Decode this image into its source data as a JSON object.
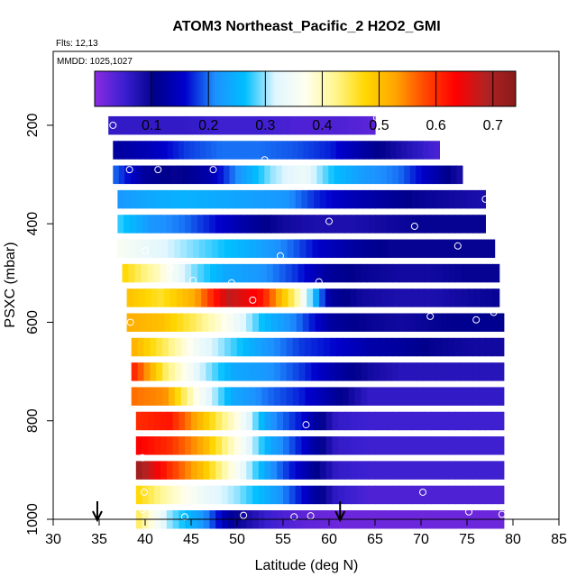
{
  "chart_data": {
    "type": "heatmap",
    "title": "ATOM3 Northeast_Pacific_2 H2O2_GMI",
    "meta": {
      "flights": "Flts: 12,13",
      "mmdd": "MMDD: 1025,1027"
    },
    "xlabel": "Latitude (deg N)",
    "ylabel": "PSXC (mbar)",
    "xlim": [
      30,
      85
    ],
    "ylim": [
      1000,
      50
    ],
    "x_ticks": [
      "30",
      "35",
      "40",
      "45",
      "50",
      "55",
      "60",
      "65",
      "70",
      "75",
      "80",
      "85"
    ],
    "y_ticks": [
      "200",
      "400",
      "600",
      "800",
      "1000"
    ],
    "colorbar": {
      "ticks": [
        "0.1",
        "0.2",
        "0.3",
        "0.4",
        "0.5",
        "0.6",
        "0.7"
      ],
      "range": [
        0.0,
        0.74
      ],
      "colors": [
        "#8b2be2",
        "#3a1fd0",
        "#00008b",
        "#0000cd",
        "#1e90ff",
        "#00bfff",
        "#e0f6ff",
        "#fffff0",
        "#fff68f",
        "#ffd700",
        "#ffa500",
        "#ff4500",
        "#ff0000",
        "#b22222",
        "#8b1a1a"
      ]
    },
    "rows": [
      {
        "p": 200,
        "lat0": 36,
        "lat1": 65,
        "vals": [
          0.06,
          0.06,
          0.06,
          0.05,
          0.05,
          0.04,
          0.04,
          0.03
        ]
      },
      {
        "p": 250,
        "lat0": 36.5,
        "lat1": 72,
        "vals": [
          0.12,
          0.14,
          0.18,
          0.2,
          0.2,
          0.19,
          0.17,
          0.12,
          0.08,
          0.04
        ]
      },
      {
        "p": 300,
        "lat0": 36.5,
        "lat1": 74.5,
        "vals": [
          0.2,
          0.12,
          0.1,
          0.13,
          0.22,
          0.3,
          0.34,
          0.26,
          0.22,
          0.2,
          0.14,
          0.08
        ]
      },
      {
        "p": 350,
        "lat0": 37,
        "lat1": 77,
        "vals": [
          0.22,
          0.24,
          0.25,
          0.24,
          0.23,
          0.22,
          0.17,
          0.14,
          0.12,
          0.1,
          0.09,
          0.08
        ]
      },
      {
        "p": 400,
        "lat0": 37,
        "lat1": 77,
        "vals": [
          0.28,
          0.22,
          0.2,
          0.16,
          0.12,
          0.09,
          0.08,
          0.08,
          0.09,
          0.1,
          0.1,
          0.1
        ]
      },
      {
        "p": 450,
        "lat0": 37,
        "lat1": 78,
        "vals": [
          0.36,
          0.33,
          0.3,
          0.27,
          0.24,
          0.2,
          0.15,
          0.12,
          0.1,
          0.1,
          0.1,
          0.1
        ]
      },
      {
        "p": 500,
        "lat0": 37.5,
        "lat1": 78.5,
        "vals": [
          0.48,
          0.4,
          0.3,
          0.24,
          0.22,
          0.18,
          0.12,
          0.1,
          0.09,
          0.09,
          0.1,
          0.1
        ]
      },
      {
        "p": 550,
        "lat0": 38,
        "lat1": 78.5,
        "vals": [
          0.5,
          0.46,
          0.52,
          0.68,
          0.62,
          0.42,
          0.12,
          0.09,
          0.08,
          0.08,
          0.09,
          0.1
        ]
      },
      {
        "p": 600,
        "lat0": 38,
        "lat1": 79,
        "vals": [
          0.52,
          0.5,
          0.44,
          0.36,
          0.26,
          0.2,
          0.12,
          0.1,
          0.09,
          0.1,
          0.11,
          0.11
        ]
      },
      {
        "p": 650,
        "lat0": 38.5,
        "lat1": 79,
        "vals": [
          0.52,
          0.44,
          0.34,
          0.28,
          0.22,
          0.18,
          0.16,
          0.13,
          0.12,
          0.1,
          0.09,
          0.09
        ]
      },
      {
        "p": 700,
        "lat0": 38.5,
        "lat1": 79,
        "vals": [
          0.62,
          0.44,
          0.32,
          0.24,
          0.22,
          0.18,
          0.13,
          0.09,
          0.07,
          0.07,
          0.07,
          0.07
        ]
      },
      {
        "p": 750,
        "lat0": 38.5,
        "lat1": 79,
        "vals": [
          0.56,
          0.54,
          0.36,
          0.24,
          0.2,
          0.17,
          0.12,
          0.06,
          0.06,
          0.06,
          0.06,
          0.06
        ]
      },
      {
        "p": 800,
        "lat0": 39,
        "lat1": 79,
        "vals": [
          0.6,
          0.62,
          0.5,
          0.38,
          0.22,
          0.16,
          0.06,
          0.05,
          0.05,
          0.05,
          0.05,
          0.05
        ]
      },
      {
        "p": 850,
        "lat0": 39,
        "lat1": 79,
        "vals": [
          0.64,
          0.6,
          0.52,
          0.38,
          0.24,
          0.16,
          0.06,
          0.05,
          0.05,
          0.05,
          0.05,
          0.05
        ]
      },
      {
        "p": 900,
        "lat0": 39,
        "lat1": 79,
        "vals": [
          0.72,
          0.6,
          0.5,
          0.36,
          0.22,
          0.14,
          0.06,
          0.05,
          0.05,
          0.05,
          0.05,
          0.05
        ]
      },
      {
        "p": 950,
        "lat0": 39,
        "lat1": 79,
        "vals": [
          0.48,
          0.4,
          0.34,
          0.3,
          0.24,
          0.16,
          0.06,
          0.04,
          0.04,
          0.04,
          0.04,
          0.04
        ]
      },
      {
        "p": 1000,
        "lat0": 39,
        "lat1": 79,
        "vals": [
          0.45,
          0.3,
          0.22,
          0.1,
          0.05,
          0.03,
          0.02,
          0.02,
          0.02,
          0.02,
          0.02,
          0.02
        ]
      }
    ],
    "points": [
      [
        36.5,
        200
      ],
      [
        65.2,
        185
      ],
      [
        72.3,
        225
      ],
      [
        38.3,
        290
      ],
      [
        41.4,
        290
      ],
      [
        47.4,
        290
      ],
      [
        53.0,
        270
      ],
      [
        77.0,
        350
      ],
      [
        60.0,
        395
      ],
      [
        69.3,
        405
      ],
      [
        74.0,
        445
      ],
      [
        40.0,
        455
      ],
      [
        42.7,
        490
      ],
      [
        54.7,
        465
      ],
      [
        45.2,
        515
      ],
      [
        49.4,
        520
      ],
      [
        58.9,
        518
      ],
      [
        51.7,
        555
      ],
      [
        38.4,
        600
      ],
      [
        71.0,
        588
      ],
      [
        76.0,
        595
      ],
      [
        77.9,
        580
      ],
      [
        57.5,
        808
      ],
      [
        39.7,
        875
      ],
      [
        39.9,
        945
      ],
      [
        70.2,
        945
      ],
      [
        39.7,
        980
      ],
      [
        44.3,
        995
      ],
      [
        50.7,
        992
      ],
      [
        56.2,
        995
      ],
      [
        58.0,
        993
      ],
      [
        75.2,
        985
      ],
      [
        78.8,
        990
      ]
    ],
    "arrows": [
      34.8,
      61.2
    ]
  }
}
